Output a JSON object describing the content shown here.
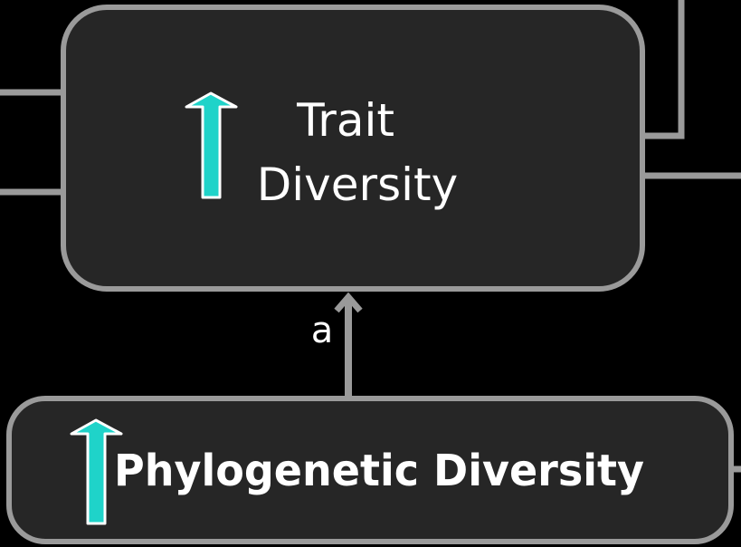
{
  "colors": {
    "background": "#000000",
    "box_fill": "#262626",
    "box_stroke": "#9a9a9a",
    "connector": "#9a9a9a",
    "increase_arrow": "#1fd3c9",
    "increase_arrow_outline": "#ffffff",
    "text": "#ffffff"
  },
  "nodes": {
    "trait_diversity": {
      "label_line1": "Trait",
      "label_line2": "Diversity",
      "indicator_icon": "up-arrow-icon"
    },
    "phylogenetic_diversity": {
      "label": "Phylogenetic Diversity",
      "indicator_icon": "up-arrow-icon"
    }
  },
  "edges": {
    "phylo_to_trait": {
      "label": "a"
    }
  }
}
